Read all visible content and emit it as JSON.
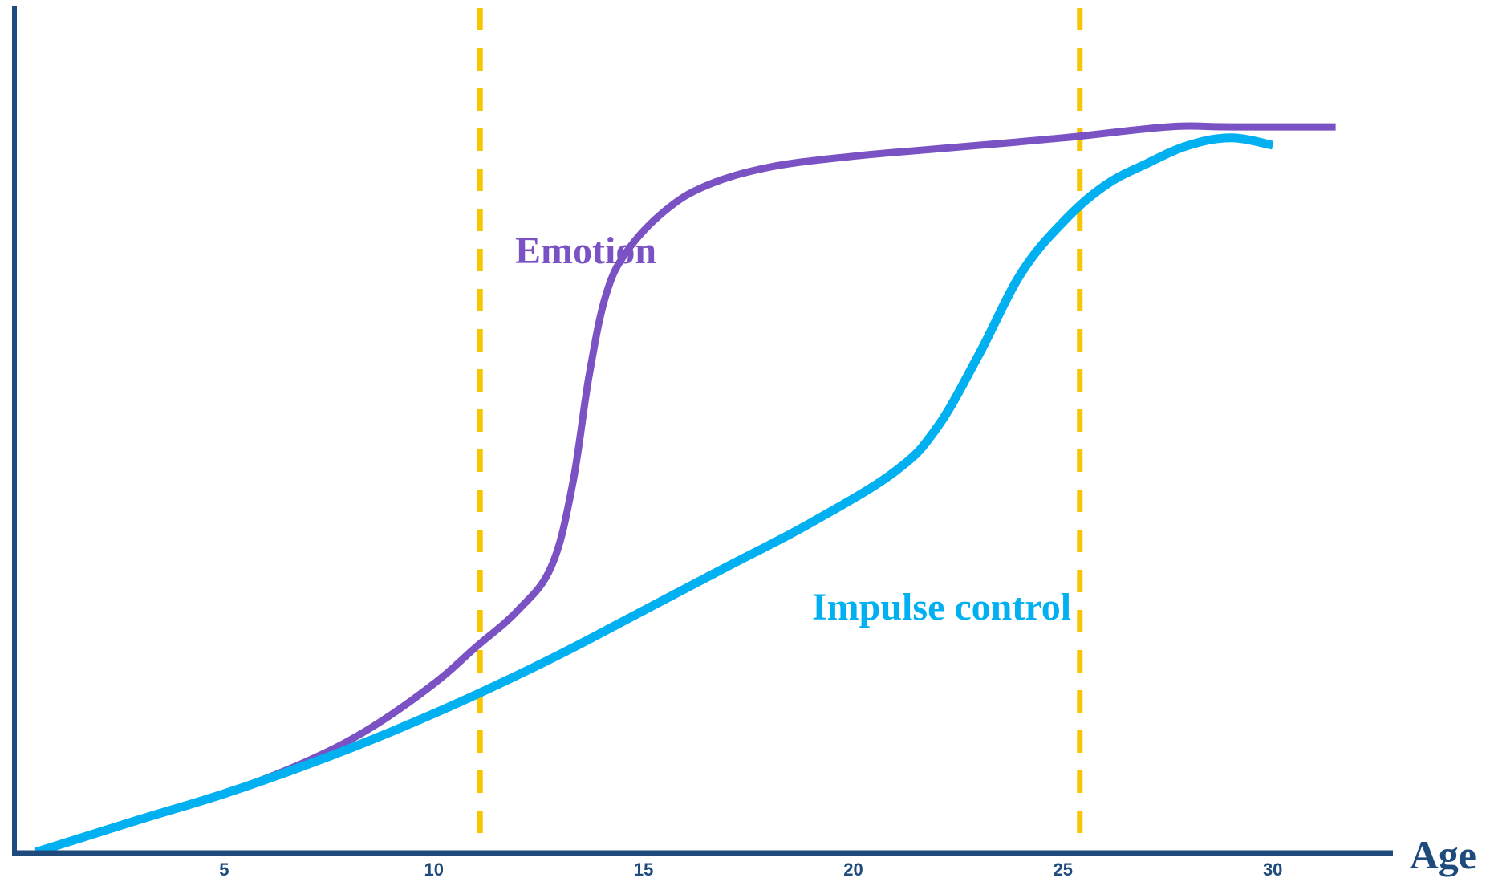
{
  "chart_data": {
    "type": "line",
    "xlabel": "Age",
    "ylabel": "",
    "xlim": [
      0,
      33
    ],
    "ylim": [
      0,
      100
    ],
    "x_ticks": [
      5,
      10,
      15,
      20,
      25,
      30
    ],
    "grid": false,
    "legend": "none",
    "colors": {
      "axis": "#1f4a7c",
      "marker": "#f7c600"
    },
    "series": [
      {
        "name": "Emotion",
        "color": "#7b52c4",
        "points": [
          [
            0.5,
            0
          ],
          [
            3,
            4.5
          ],
          [
            5,
            8
          ],
          [
            7,
            12.5
          ],
          [
            8.5,
            17
          ],
          [
            10,
            23
          ],
          [
            11,
            28
          ],
          [
            12,
            33
          ],
          [
            12.8,
            39
          ],
          [
            13.3,
            50
          ],
          [
            13.7,
            65
          ],
          [
            14.1,
            76
          ],
          [
            14.6,
            82
          ],
          [
            15.5,
            87.5
          ],
          [
            16.5,
            91
          ],
          [
            18,
            93.5
          ],
          [
            20,
            95
          ],
          [
            22,
            96
          ],
          [
            25,
            97.5
          ],
          [
            27.5,
            99
          ],
          [
            29,
            99
          ],
          [
            31.5,
            99
          ]
        ]
      },
      {
        "name": "Impulse control",
        "color": "#00b0f0",
        "points": [
          [
            0.5,
            0
          ],
          [
            3,
            4.5
          ],
          [
            5,
            8
          ],
          [
            7,
            12
          ],
          [
            9,
            16.5
          ],
          [
            11,
            21.5
          ],
          [
            13,
            27
          ],
          [
            15,
            33
          ],
          [
            17,
            39
          ],
          [
            19,
            45
          ],
          [
            21,
            52
          ],
          [
            22,
            58
          ],
          [
            23,
            68
          ],
          [
            24,
            79
          ],
          [
            25,
            86
          ],
          [
            26,
            91
          ],
          [
            27,
            94
          ],
          [
            28,
            96.5
          ],
          [
            29,
            97.5
          ],
          [
            30,
            96.5
          ]
        ]
      }
    ],
    "reference_lines": [
      {
        "x": 11.1,
        "color": "#f7c600",
        "style": "dashed"
      },
      {
        "x": 25.4,
        "color": "#f7c600",
        "style": "dashed"
      }
    ]
  }
}
